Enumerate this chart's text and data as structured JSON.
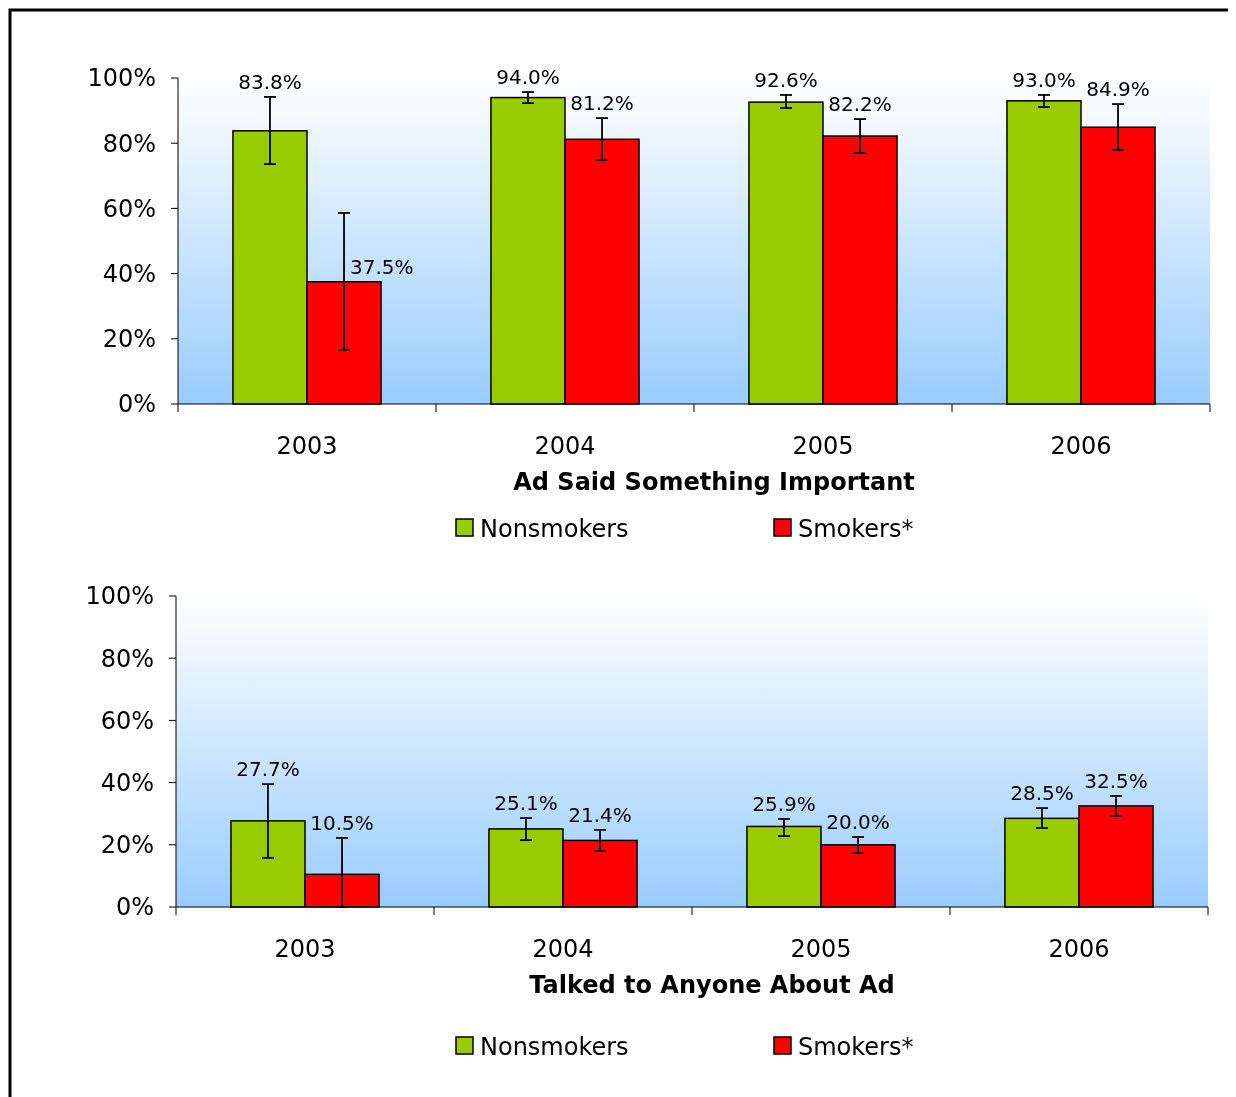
{
  "chart_data": [
    {
      "type": "bar",
      "title": "Ad Said Something Important",
      "categories": [
        "2003",
        "2004",
        "2005",
        "2006"
      ],
      "ylim": [
        0,
        100
      ],
      "yticks": [
        {
          "value": 0,
          "label": "0%"
        },
        {
          "value": 20,
          "label": "20%"
        },
        {
          "value": 40,
          "label": "40%"
        },
        {
          "value": 60,
          "label": "60%"
        },
        {
          "value": 80,
          "label": "80%"
        },
        {
          "value": 100,
          "label": "100%"
        }
      ],
      "grid": false,
      "legend": "bottom",
      "series": [
        {
          "name": "Nonsmokers",
          "color": "#99cc00",
          "values": [
            83.8,
            94.0,
            92.6,
            93.0
          ],
          "errors": [
            [
              73.6,
              94.2
            ],
            [
              92.3,
              95.7
            ],
            [
              90.8,
              94.8
            ],
            [
              91.1,
              94.8
            ]
          ],
          "value_labels": [
            "83.8%",
            "94.0%",
            "92.6%",
            "93.0%"
          ]
        },
        {
          "name": "Smokers*",
          "color": "#ff0000",
          "values": [
            37.5,
            81.2,
            82.2,
            84.9
          ],
          "errors": [
            [
              16.6,
              58.6
            ],
            [
              74.8,
              87.7
            ],
            [
              77.0,
              87.4
            ],
            [
              77.9,
              92.0
            ]
          ],
          "value_labels": [
            "37.5%",
            "81.2%",
            "82.2%",
            "84.9%"
          ]
        }
      ]
    },
    {
      "type": "bar",
      "title": "Talked to Anyone About Ad",
      "categories": [
        "2003",
        "2004",
        "2005",
        "2006"
      ],
      "ylim": [
        0,
        100
      ],
      "yticks": [
        {
          "value": 0,
          "label": "0%"
        },
        {
          "value": 20,
          "label": "20%"
        },
        {
          "value": 40,
          "label": "40%"
        },
        {
          "value": 60,
          "label": "60%"
        },
        {
          "value": 80,
          "label": "80%"
        },
        {
          "value": 100,
          "label": "100%"
        }
      ],
      "grid": false,
      "legend": "bottom",
      "series": [
        {
          "name": "Nonsmokers",
          "color": "#99cc00",
          "values": [
            27.7,
            25.1,
            25.9,
            28.5
          ],
          "errors": [
            [
              15.8,
              39.5
            ],
            [
              21.5,
              28.6
            ],
            [
              22.8,
              28.3
            ],
            [
              25.4,
              31.8
            ]
          ],
          "value_labels": [
            "27.7%",
            "25.1%",
            "25.9%",
            "28.5%"
          ]
        },
        {
          "name": "Smokers*",
          "color": "#ff0000",
          "values": [
            10.5,
            21.4,
            20.0,
            32.5
          ],
          "errors": [
            [
              0,
              22.2
            ],
            [
              18.0,
              24.8
            ],
            [
              17.4,
              22.5
            ],
            [
              29.3,
              35.7
            ]
          ],
          "value_labels": [
            "10.5%",
            "21.4%",
            "20.0%",
            "32.5%"
          ]
        }
      ]
    }
  ]
}
